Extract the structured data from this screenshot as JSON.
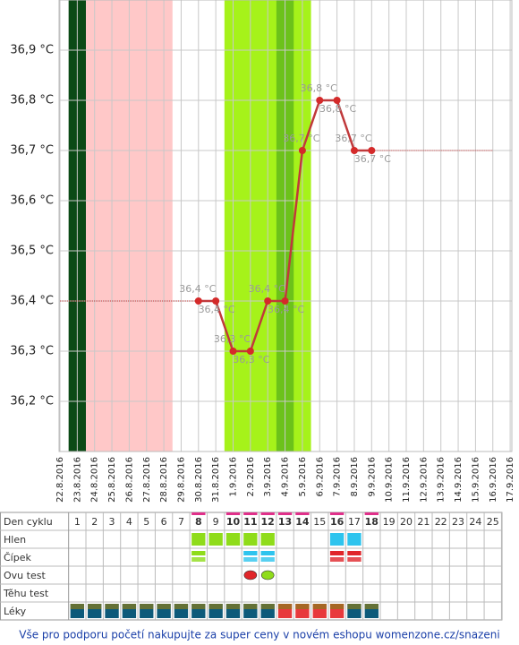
{
  "chart_data": {
    "type": "line",
    "categories": [
      "22.8.2016",
      "23.8.2016",
      "24.8.2016",
      "25.8.2016",
      "26.8.2016",
      "27.8.2016",
      "28.8.2016",
      "29.8.2016",
      "30.8.2016",
      "31.8.2016",
      "1.9.2016",
      "2.9.2016",
      "3.9.2016",
      "4.9.2016",
      "5.9.2016",
      "6.9.2016",
      "7.9.2016",
      "8.9.2016",
      "9.9.2016",
      "10.9.2016",
      "11.9.2016",
      "12.9.2016",
      "13.9.2016",
      "14.9.2016",
      "15.9.2016",
      "16.9.2016",
      "17.9.2016"
    ],
    "series": [
      {
        "color": "#c0393b",
        "values": [
          null,
          null,
          null,
          null,
          null,
          null,
          null,
          null,
          36.4,
          36.4,
          36.3,
          36.3,
          36.4,
          36.4,
          36.7,
          36.8,
          36.8,
          36.7,
          36.7,
          null,
          null,
          null,
          null,
          null,
          null,
          null,
          null
        ],
        "value_labels": [
          null,
          null,
          null,
          null,
          null,
          null,
          null,
          null,
          "36,4 °C",
          "36,4 °C",
          "36,3 °C",
          "36,3 °C",
          "36,4 °C",
          "36,4 °C",
          "36,7 °C",
          "36,8 °C",
          "36,8 °C",
          "36,7 °C",
          "36,7 °C",
          null,
          null,
          null,
          null,
          null,
          null,
          null,
          null
        ],
        "label_position": [
          null,
          null,
          null,
          null,
          null,
          null,
          null,
          null,
          "above",
          "below",
          "above",
          "below",
          "above",
          "below",
          "above",
          "above",
          "below",
          "above",
          "below",
          null,
          null,
          null,
          null,
          null,
          null,
          null,
          null
        ]
      }
    ],
    "reference_lines": [
      {
        "value": 36.4,
        "from": 0,
        "to": 8
      },
      {
        "value": 36.7,
        "from": 18,
        "to": 25
      }
    ],
    "bands": [
      {
        "from": 1,
        "to": 1,
        "color": "#0b4a16"
      },
      {
        "from": 2,
        "to": 6,
        "color": "#ffc8c8"
      },
      {
        "from": 10,
        "to": 14,
        "color": "#a6f21a"
      },
      {
        "from": 13,
        "to": 13,
        "color": "#6cc21a"
      }
    ],
    "ylim": [
      36.1,
      37.0
    ],
    "yticks": [
      {
        "value": 36.2,
        "label": "36,2 °C"
      },
      {
        "value": 36.3,
        "label": "36,3 °C"
      },
      {
        "value": 36.4,
        "label": "36,4 °C"
      },
      {
        "value": 36.5,
        "label": "36,5 °C"
      },
      {
        "value": 36.6,
        "label": "36,6 °C"
      },
      {
        "value": 36.7,
        "label": "36,7 °C"
      },
      {
        "value": 36.8,
        "label": "36,8 °C"
      },
      {
        "value": 36.9,
        "label": "36,9 °C"
      }
    ],
    "grid": true
  },
  "table": {
    "header_label": "Den cyklu",
    "days": [
      1,
      2,
      3,
      4,
      5,
      6,
      7,
      8,
      9,
      10,
      11,
      12,
      13,
      14,
      15,
      16,
      17,
      18,
      19,
      20,
      21,
      22,
      23,
      24,
      25
    ],
    "highlight_days": [
      8,
      10,
      11,
      12,
      13,
      14,
      16,
      18
    ],
    "rows": [
      {
        "label": "Hlen",
        "marks": [
          {
            "days": [
              8,
              9,
              10,
              11,
              12
            ],
            "color": "#8fdc1a"
          },
          {
            "days": [
              16,
              17
            ],
            "color": "#2ec4ee"
          }
        ]
      },
      {
        "label": "Čípek",
        "marks": [
          {
            "days": [
              8
            ],
            "color": "#8fdc1a"
          },
          {
            "days": [
              11,
              12
            ],
            "color": "#2ec4ee"
          },
          {
            "days": [
              16,
              17
            ],
            "color": "#e0262a"
          }
        ]
      },
      {
        "label": "Ovu test",
        "marks": [
          {
            "days": [
              11
            ],
            "color": "#e0262a"
          },
          {
            "days": [
              12
            ],
            "color": "#8fdc1a"
          }
        ]
      },
      {
        "label": "Těhu test",
        "marks": []
      },
      {
        "label": "Léky",
        "marks": [
          {
            "days": [
              1,
              2,
              3,
              4,
              5,
              6,
              7,
              8,
              9,
              10,
              11,
              12,
              17,
              18
            ],
            "color": "#0d5a7a"
          },
          {
            "days": [
              13,
              14,
              15,
              16
            ],
            "color": "#e8393c"
          }
        ]
      }
    ]
  },
  "footer": "Vše pro podporu početí nakupujte za super ceny v novém eshopu womenzone.cz/snazeni"
}
